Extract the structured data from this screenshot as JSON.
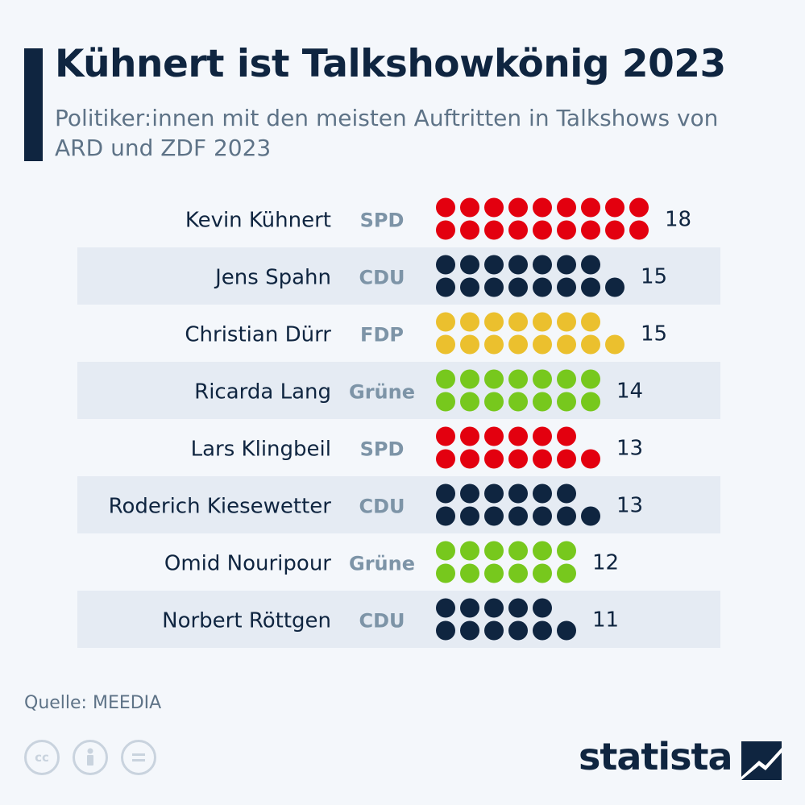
{
  "title": "Kühnert ist Talkshowkönig 2023",
  "subtitle": "Politiker:innen mit den meisten Auftritten in Talkshows von ARD und ZDF 2023",
  "source": "Quelle: MEEDIA",
  "brand": "statista",
  "license_icons": [
    "cc-icon",
    "attribution-icon",
    "no-derivatives-icon"
  ],
  "colors": {
    "background": "#f4f7fb",
    "stripe": "#e5ebf3",
    "title": "#0f2540",
    "subtitle": "#5e7387",
    "party_label": "#7d94a7",
    "SPD": "#e3000f",
    "CDU": "#0f2540",
    "FDP": "#ebc02e",
    "Grüne": "#77c81d"
  },
  "chart_data": {
    "type": "bar",
    "value_label": "Auftritte",
    "categories": [
      "Kevin Kühnert",
      "Jens Spahn",
      "Christian Dürr",
      "Ricarda Lang",
      "Lars Klingbeil",
      "Roderich Kiesewetter",
      "Omid Nouripour",
      "Norbert Röttgen"
    ],
    "parties": [
      "SPD",
      "CDU",
      "FDP",
      "Grüne",
      "SPD",
      "CDU",
      "Grüne",
      "CDU"
    ],
    "values": [
      18,
      15,
      15,
      14,
      13,
      13,
      12,
      11
    ]
  }
}
